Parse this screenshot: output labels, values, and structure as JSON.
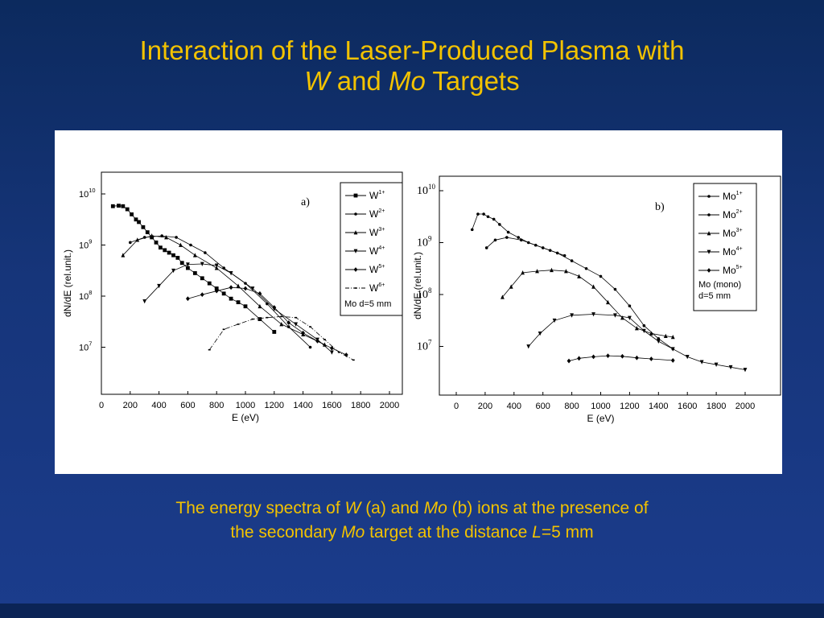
{
  "title": {
    "line1": "Interaction of the Laser-Produced Plasma with",
    "line2_w": "W",
    "line2_and": " and ",
    "line2_mo": "Mo",
    "line2_targets": " Targets"
  },
  "caption": {
    "p1": "The energy spectra of ",
    "w": "W",
    "p2": " (a) and ",
    "mo": "Mo",
    "p3": " (b) ions at the presence of",
    "p4": "the secondary ",
    "mo2": "Mo",
    "p5": " target at the distance ",
    "L": "L",
    "p6": "=5 mm"
  },
  "colors": {
    "title": "#f2c200",
    "background": "#16357a",
    "panel": "#ffffff",
    "ink": "#000000"
  },
  "chart_data": [
    {
      "type": "line",
      "panel_label": "a)",
      "xlabel": "E  (eV)",
      "ylabel": "dN/dE  (rel.unit.)",
      "xlim": [
        0,
        2000
      ],
      "x_ticks": [
        0,
        200,
        400,
        600,
        800,
        1000,
        1200,
        1400,
        1600,
        1800,
        2000
      ],
      "ylim_log10": [
        6.0,
        10.2
      ],
      "y_ticks": [
        {
          "base": "10",
          "exp": "10",
          "v": 10
        },
        {
          "base": "10",
          "exp": "9",
          "v": 9
        },
        {
          "base": "10",
          "exp": "8",
          "v": 8
        },
        {
          "base": "10",
          "exp": "7",
          "v": 7
        }
      ],
      "log_y": true,
      "legend_position": "top-right",
      "legend_note": "Mo d=5 mm",
      "series": [
        {
          "name": "W",
          "sup": "1+",
          "marker": "square",
          "points": [
            [
              80,
              9.76
            ],
            [
              120,
              9.77
            ],
            [
              150,
              9.76
            ],
            [
              180,
              9.7
            ],
            [
              210,
              9.6
            ],
            [
              240,
              9.5
            ],
            [
              260,
              9.45
            ],
            [
              290,
              9.35
            ],
            [
              320,
              9.25
            ],
            [
              350,
              9.15
            ],
            [
              380,
              9.05
            ],
            [
              410,
              8.95
            ],
            [
              440,
              8.9
            ],
            [
              470,
              8.85
            ],
            [
              500,
              8.8
            ],
            [
              530,
              8.75
            ],
            [
              560,
              8.65
            ],
            [
              600,
              8.55
            ],
            [
              650,
              8.45
            ],
            [
              700,
              8.35
            ],
            [
              750,
              8.25
            ],
            [
              800,
              8.15
            ],
            [
              850,
              8.05
            ],
            [
              900,
              7.95
            ],
            [
              950,
              7.88
            ],
            [
              1000,
              7.8
            ],
            [
              1100,
              7.55
            ],
            [
              1200,
              7.3
            ]
          ]
        },
        {
          "name": "W",
          "sup": "2+",
          "marker": "dot",
          "points": [
            [
              200,
              9.05
            ],
            [
              300,
              9.15
            ],
            [
              420,
              9.18
            ],
            [
              520,
              9.15
            ],
            [
              620,
              9.0
            ],
            [
              720,
              8.85
            ],
            [
              850,
              8.55
            ],
            [
              1000,
              8.25
            ],
            [
              1150,
              7.85
            ],
            [
              1300,
              7.4
            ],
            [
              1450,
              7.0
            ]
          ]
        },
        {
          "name": "W",
          "sup": "3+",
          "marker": "triangle-up",
          "points": [
            [
              150,
              8.8
            ],
            [
              250,
              9.1
            ],
            [
              350,
              9.18
            ],
            [
              450,
              9.15
            ],
            [
              550,
              9.0
            ],
            [
              650,
              8.8
            ],
            [
              800,
              8.55
            ],
            [
              950,
              8.2
            ],
            [
              1100,
              7.8
            ],
            [
              1250,
              7.45
            ],
            [
              1400,
              7.25
            ],
            [
              1550,
              7.05
            ]
          ]
        },
        {
          "name": "W",
          "sup": "4+",
          "marker": "triangle-down",
          "points": [
            [
              300,
              7.9
            ],
            [
              400,
              8.2
            ],
            [
              500,
              8.5
            ],
            [
              600,
              8.62
            ],
            [
              700,
              8.63
            ],
            [
              800,
              8.6
            ],
            [
              900,
              8.45
            ],
            [
              1050,
              8.15
            ],
            [
              1200,
              7.75
            ],
            [
              1350,
              7.45
            ],
            [
              1500,
              7.15
            ],
            [
              1600,
              6.9
            ]
          ]
        },
        {
          "name": "W",
          "sup": "5+",
          "marker": "diamond",
          "points": [
            [
              600,
              7.95
            ],
            [
              700,
              8.03
            ],
            [
              800,
              8.1
            ],
            [
              900,
              8.17
            ],
            [
              1000,
              8.15
            ],
            [
              1100,
              8.05
            ],
            [
              1200,
              7.78
            ],
            [
              1300,
              7.48
            ],
            [
              1400,
              7.28
            ],
            [
              1500,
              7.12
            ],
            [
              1600,
              6.98
            ],
            [
              1700,
              6.85
            ]
          ]
        },
        {
          "name": "W",
          "sup": "6+",
          "marker": "dash-dot",
          "points": [
            [
              750,
              6.95
            ],
            [
              850,
              7.35
            ],
            [
              950,
              7.45
            ],
            [
              1050,
              7.55
            ],
            [
              1150,
              7.58
            ],
            [
              1250,
              7.6
            ],
            [
              1350,
              7.58
            ],
            [
              1450,
              7.4
            ],
            [
              1550,
              7.15
            ],
            [
              1650,
              6.9
            ],
            [
              1750,
              6.75
            ]
          ]
        }
      ]
    },
    {
      "type": "line",
      "panel_label": "b)",
      "xlabel": "E  (eV)",
      "ylabel": "dN/dE  (rel.unit.)",
      "xlim": [
        0,
        2000
      ],
      "x_ticks": [
        0,
        200,
        400,
        600,
        800,
        1000,
        1200,
        1400,
        1600,
        1800,
        2000
      ],
      "ylim_log10": [
        6.0,
        10.2
      ],
      "y_ticks": [
        {
          "base": "10",
          "exp": "10",
          "v": 10
        },
        {
          "base": "10",
          "exp": "9",
          "v": 9
        },
        {
          "base": "10",
          "exp": "8",
          "v": 8
        },
        {
          "base": "10",
          "exp": "7",
          "v": 7
        }
      ],
      "log_y": true,
      "legend_position": "top-right",
      "legend_note": [
        "Mo (mono)",
        "d=5 mm"
      ],
      "series": [
        {
          "name": "Mo",
          "sup": "1+",
          "marker": "dot",
          "points": [
            [
              110,
              9.25
            ],
            [
              150,
              9.55
            ],
            [
              190,
              9.55
            ],
            [
              220,
              9.5
            ],
            [
              260,
              9.45
            ],
            [
              300,
              9.35
            ],
            [
              360,
              9.2
            ],
            [
              430,
              9.1
            ],
            [
              500,
              9.0
            ],
            [
              600,
              8.9
            ],
            [
              700,
              8.8
            ],
            [
              800,
              8.65
            ],
            [
              900,
              8.5
            ],
            [
              1000,
              8.35
            ],
            [
              1100,
              8.1
            ],
            [
              1200,
              7.78
            ],
            [
              1300,
              7.4
            ],
            [
              1400,
              7.15
            ],
            [
              1500,
              6.95
            ]
          ]
        },
        {
          "name": "Mo",
          "sup": "2+",
          "marker": "dot",
          "points": [
            [
              210,
              8.9
            ],
            [
              270,
              9.05
            ],
            [
              350,
              9.1
            ],
            [
              450,
              9.05
            ],
            [
              550,
              8.95
            ],
            [
              650,
              8.85
            ],
            [
              750,
              8.75
            ]
          ]
        },
        {
          "name": "Mo",
          "sup": "3+",
          "marker": "triangle-up",
          "points": [
            [
              320,
              7.95
            ],
            [
              380,
              8.15
            ],
            [
              460,
              8.42
            ],
            [
              560,
              8.45
            ],
            [
              660,
              8.47
            ],
            [
              760,
              8.45
            ],
            [
              850,
              8.35
            ],
            [
              950,
              8.15
            ],
            [
              1050,
              7.85
            ],
            [
              1150,
              7.55
            ],
            [
              1250,
              7.35
            ],
            [
              1350,
              7.25
            ],
            [
              1450,
              7.2
            ],
            [
              1500,
              7.18
            ]
          ]
        },
        {
          "name": "Mo",
          "sup": "4+",
          "marker": "triangle-down",
          "points": [
            [
              500,
              7.0
            ],
            [
              580,
              7.25
            ],
            [
              680,
              7.5
            ],
            [
              800,
              7.6
            ],
            [
              950,
              7.62
            ],
            [
              1100,
              7.6
            ],
            [
              1200,
              7.55
            ],
            [
              1300,
              7.3
            ],
            [
              1400,
              7.1
            ],
            [
              1500,
              6.95
            ],
            [
              1600,
              6.8
            ],
            [
              1700,
              6.7
            ],
            [
              1800,
              6.65
            ],
            [
              1900,
              6.6
            ],
            [
              2000,
              6.55
            ]
          ]
        },
        {
          "name": "Mo",
          "sup": "5+",
          "marker": "diamond",
          "points": [
            [
              780,
              6.72
            ],
            [
              850,
              6.77
            ],
            [
              950,
              6.8
            ],
            [
              1050,
              6.82
            ],
            [
              1150,
              6.81
            ],
            [
              1250,
              6.78
            ],
            [
              1350,
              6.76
            ],
            [
              1500,
              6.73
            ]
          ]
        }
      ]
    }
  ]
}
